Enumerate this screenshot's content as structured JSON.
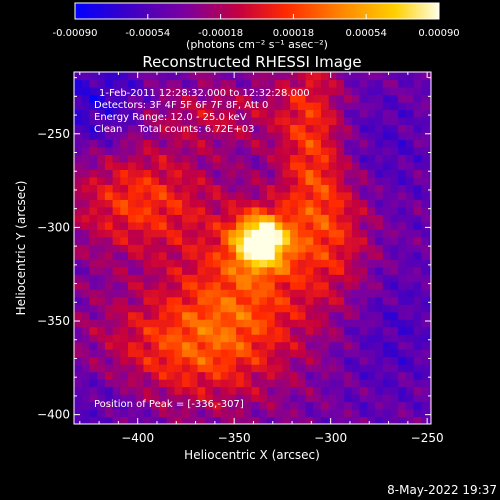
{
  "chart_data": {
    "type": "heatmap",
    "title": "Reconstructed RHESSI Image",
    "xlabel": "Heliocentric X (arcsec)",
    "ylabel": "Heliocentric Y (arcsec)",
    "xlim": [
      -433,
      -248
    ],
    "ylim": [
      -405,
      -217
    ],
    "xticks": [
      -400,
      -350,
      -300,
      -250
    ],
    "yticks": [
      -250,
      -300,
      -350,
      -400
    ],
    "colorbar": {
      "range": [
        -0.0009,
        0.0009
      ],
      "ticks": [
        -0.0009,
        -0.00054,
        -0.00018,
        0.00018,
        0.00054,
        0.0009
      ],
      "tick_labels": [
        "-0.00090",
        "-0.00054",
        "-0.00018",
        "0.00018",
        "0.00054",
        "0.00090"
      ],
      "unit_label": "(photons cm⁻² s⁻¹ asec⁻²)",
      "colors": [
        "#0000ff",
        "#3a00c8",
        "#7a00a0",
        "#c40040",
        "#ff2a00",
        "#ff8a00",
        "#ffd000",
        "#ffffe6"
      ]
    },
    "peak": {
      "x": -336,
      "y": -307
    },
    "annotations": [
      "1-Feb-2011 12:28:32.000 to 12:32:28.000",
      "Detectors: 3F 4F 5F 6F 7F 8F, Att 0",
      "Energy Range: 12.0 - 25.0 keV",
      "Clean     Total counts: 6.72E+03",
      "Position of Peak = [-336,-307]"
    ]
  },
  "footer": {
    "timestamp": "8-May-2022 19:37"
  }
}
